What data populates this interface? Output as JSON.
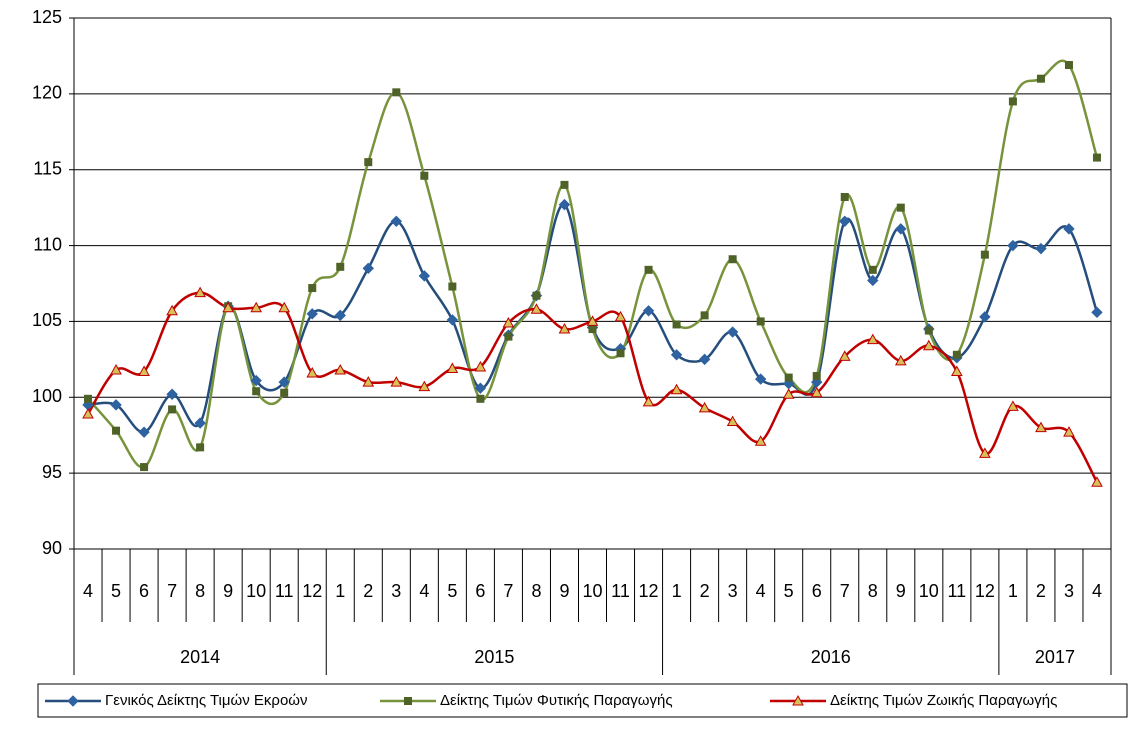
{
  "chart_data": {
    "type": "line",
    "category_groups": [
      {
        "label": "2014",
        "categories": [
          "4",
          "5",
          "6",
          "7",
          "8",
          "9",
          "10",
          "11",
          "12"
        ]
      },
      {
        "label": "2015",
        "categories": [
          "1",
          "2",
          "3",
          "4",
          "5",
          "6",
          "7",
          "8",
          "9",
          "10",
          "11",
          "12"
        ]
      },
      {
        "label": "2016",
        "categories": [
          "1",
          "2",
          "3",
          "4",
          "5",
          "6",
          "7",
          "8",
          "9",
          "10",
          "11",
          "12"
        ]
      },
      {
        "label": "2017",
        "categories": [
          "1",
          "2",
          "3",
          "4"
        ]
      }
    ],
    "series": [
      {
        "name": "Γενικός Δείκτης Τιμών Εκροών",
        "color": "#254e7d",
        "marker": "diamond",
        "marker_color": "#2e62a0",
        "values": [
          99.5,
          99.5,
          97.7,
          100.2,
          98.3,
          106.0,
          101.1,
          101.0,
          105.5,
          105.4,
          108.5,
          111.6,
          108.0,
          105.1,
          100.6,
          104.1,
          106.7,
          112.7,
          104.6,
          103.2,
          105.7,
          102.8,
          102.5,
          104.3,
          101.2,
          100.9,
          101.0,
          111.6,
          107.7,
          111.1,
          104.5,
          102.6,
          105.3,
          110.0,
          109.8,
          111.1,
          105.6
        ]
      },
      {
        "name": "Δείκτης Τιμών Φυτικής Παραγωγής",
        "color": "#77933c",
        "marker": "square",
        "marker_color": "#4f6228",
        "values": [
          99.9,
          97.8,
          95.4,
          99.2,
          96.7,
          106.0,
          100.4,
          100.3,
          107.2,
          108.6,
          115.5,
          120.1,
          114.6,
          107.3,
          99.9,
          104.0,
          106.7,
          114.0,
          104.5,
          102.9,
          108.4,
          104.8,
          105.4,
          109.1,
          105.0,
          101.3,
          101.4,
          113.2,
          108.4,
          112.5,
          104.4,
          102.8,
          109.4,
          119.5,
          121.0,
          121.9,
          115.8
        ]
      },
      {
        "name": "Δείκτης Τιμών Ζωικής Παραγωγής",
        "color": "#c00000",
        "marker": "triangle",
        "marker_color": "#d8c15a",
        "values": [
          98.9,
          101.8,
          101.7,
          105.7,
          106.9,
          105.9,
          105.9,
          105.9,
          101.6,
          101.8,
          101.0,
          101.0,
          100.7,
          101.9,
          102.0,
          104.9,
          105.8,
          104.5,
          105.0,
          105.3,
          99.7,
          100.5,
          99.3,
          98.4,
          97.1,
          100.2,
          100.3,
          102.7,
          103.8,
          102.4,
          103.4,
          101.7,
          96.3,
          99.4,
          98.0,
          97.7,
          94.4
        ]
      }
    ],
    "ylim": [
      90,
      125
    ],
    "yticks": [
      90,
      95,
      100,
      105,
      110,
      115,
      120,
      125
    ],
    "grid": true,
    "smooth": true,
    "legend": "bottom"
  }
}
